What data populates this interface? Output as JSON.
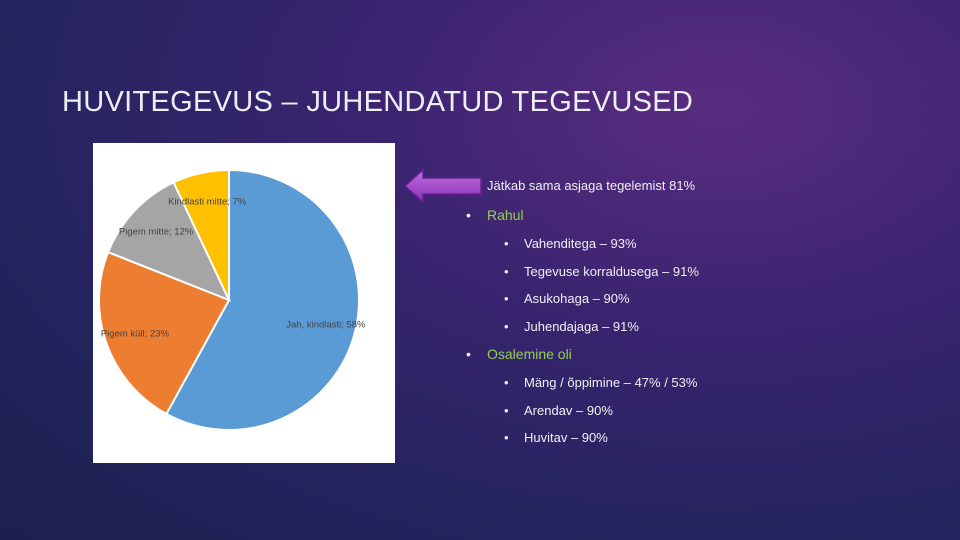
{
  "title": "HUVITEGEVUS – JUHENDATUD TEGEVUSED",
  "chart_data": {
    "type": "pie",
    "values": [
      58,
      23,
      12,
      7
    ],
    "value_labels": [
      "Jah, kindlasti; 58%",
      "Pigem küll; 23%",
      "Pigem mitte; 12%",
      "Kindlasti mitte; 7%"
    ],
    "colors": [
      "#5b9bd5",
      "#ed7d31",
      "#a5a5a5",
      "#ffc000"
    ]
  },
  "text": {
    "top": "Jätkab sama asjaga tegelemist 81%",
    "groups": [
      {
        "heading": "Rahul",
        "items": [
          "Vahenditega – 93%",
          "Tegevuse korraldusega – 91%",
          "Asukohaga – 90%",
          "Juhendajaga – 91%"
        ]
      },
      {
        "heading": "Osalemine oli",
        "items": [
          "Mäng / õppimine – 47% / 53%",
          "Arendav – 90%",
          "Huvitav – 90%"
        ]
      }
    ]
  }
}
